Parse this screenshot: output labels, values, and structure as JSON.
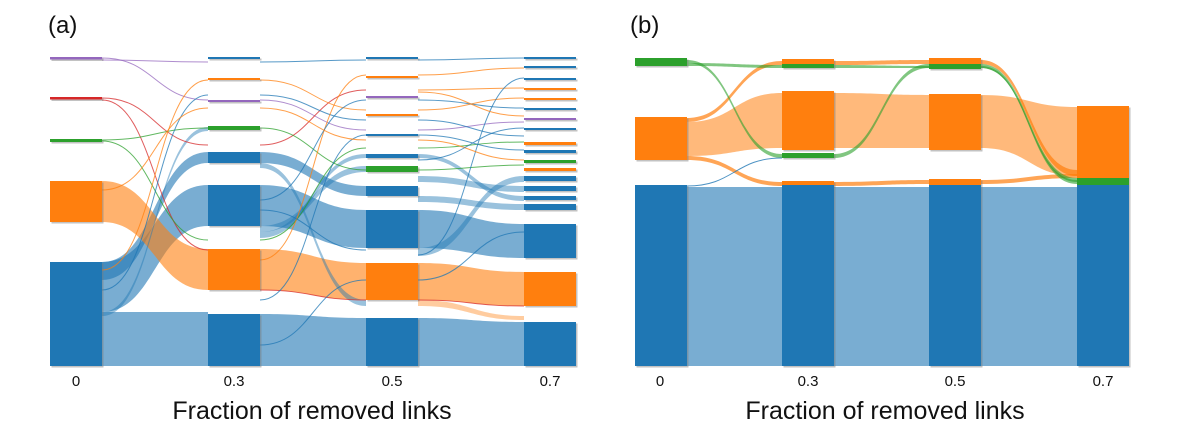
{
  "colors": {
    "blue": "#1f77b4",
    "orange": "#ff7f0e",
    "green": "#2ca02c",
    "red": "#d62728",
    "purple": "#9467bd",
    "node_shadow": "#777777"
  },
  "panel_a": {
    "label": "(a)",
    "xlabel": "Fraction of removed links",
    "ticks": [
      "0",
      "0.3",
      "0.5",
      "0.7"
    ]
  },
  "panel_b": {
    "label": "(b)",
    "xlabel": "Fraction of removed links",
    "ticks": [
      "0",
      "0.3",
      "0.5",
      "0.7"
    ]
  }
}
